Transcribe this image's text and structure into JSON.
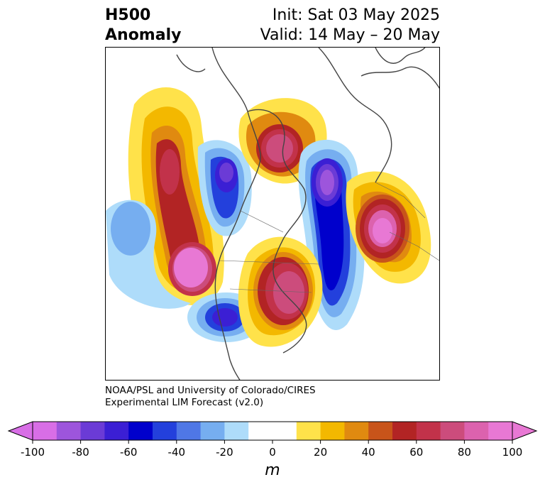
{
  "title": {
    "left_line1": "H500",
    "left_line2": "Anomaly",
    "right_line1": "Init: Sat 03 May 2025",
    "right_line2": "Valid: 14 May – 20 May"
  },
  "credit": {
    "line1": "NOAA/PSL and University of Colorado/CIRES",
    "line2": "Experimental LIM Forecast (v2.0)"
  },
  "colorbar": {
    "label": "m",
    "ticks": [
      "-100",
      "-80",
      "-60",
      "-40",
      "-20",
      "0",
      "20",
      "40",
      "60",
      "80",
      "100"
    ],
    "colors": [
      "#d86ee6",
      "#9d55dc",
      "#6b3bd6",
      "#3b1fd4",
      "#0000cc",
      "#2340dc",
      "#4f77e6",
      "#76aef0",
      "#aedcfa",
      "#ffffff",
      "#ffffff",
      "#ffe24a",
      "#f3b800",
      "#e08a10",
      "#c8541a",
      "#b22424",
      "#c2324a",
      "#cc4c7c",
      "#dc62ae",
      "#e878d4"
    ]
  },
  "map": {
    "anomalies": [
      {
        "name": "gulf-of-alaska-ridge",
        "sign": "positive",
        "peak": 100
      },
      {
        "name": "western-canada-trough",
        "sign": "negative",
        "peak": -60
      },
      {
        "name": "hudson-bay-ridge",
        "sign": "positive",
        "peak": 80
      },
      {
        "name": "greenland-trough",
        "sign": "negative",
        "peak": -100
      },
      {
        "name": "eastern-us-ridge",
        "sign": "positive",
        "peak": 100
      },
      {
        "name": "western-us-trough",
        "sign": "negative",
        "peak": -60
      },
      {
        "name": "europe-ridge",
        "sign": "positive",
        "peak": 100
      },
      {
        "name": "north-pacific-trough",
        "sign": "negative",
        "peak": -20
      }
    ]
  }
}
